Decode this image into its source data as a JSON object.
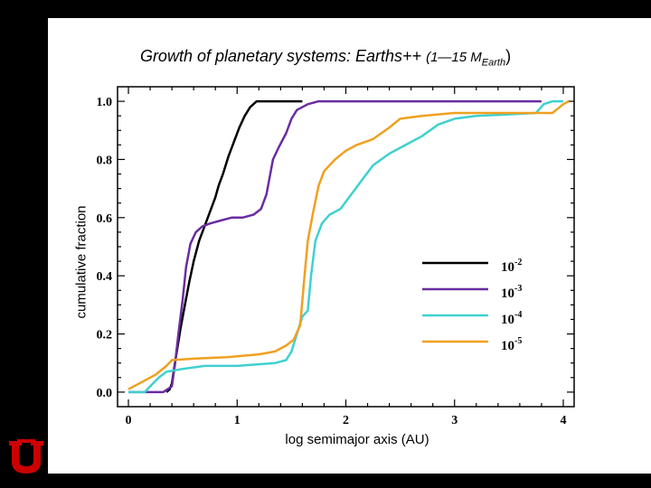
{
  "colors": {
    "background": "#000000",
    "slide": "#ffffff",
    "logo_red": "#cc0000"
  },
  "logo": {
    "icon": "university-u-logo"
  },
  "chart_data": {
    "type": "line",
    "title_main": "Growth of planetary systems:  Earths++ ",
    "title_range": "(1—15 M",
    "title_sub": "Earth",
    "title_close": ")",
    "xlabel": "log semimajor axis (AU)",
    "ylabel": "cumulative fraction",
    "xlim": [
      -0.1,
      4.1
    ],
    "ylim": [
      -0.05,
      1.05
    ],
    "xticks": [
      0,
      1,
      2,
      3,
      4
    ],
    "xtick_labels": [
      "0",
      "1",
      "2",
      "3",
      "4"
    ],
    "yticks": [
      0.0,
      0.2,
      0.4,
      0.6,
      0.8,
      1.0
    ],
    "ytick_labels": [
      "0.0",
      "0.2",
      "0.4",
      "0.6",
      "0.8",
      "1.0"
    ],
    "legend_position": "lower-right",
    "series": [
      {
        "name": "10-2",
        "base": "10",
        "exponent": "-2",
        "color": "#000000",
        "points": [
          [
            0.35,
            0.0
          ],
          [
            0.38,
            0.01
          ],
          [
            0.4,
            0.03
          ],
          [
            0.42,
            0.08
          ],
          [
            0.45,
            0.15
          ],
          [
            0.48,
            0.22
          ],
          [
            0.52,
            0.3
          ],
          [
            0.56,
            0.38
          ],
          [
            0.6,
            0.45
          ],
          [
            0.65,
            0.52
          ],
          [
            0.7,
            0.57
          ],
          [
            0.75,
            0.62
          ],
          [
            0.8,
            0.67
          ],
          [
            0.83,
            0.71
          ],
          [
            0.87,
            0.75
          ],
          [
            0.92,
            0.81
          ],
          [
            0.97,
            0.86
          ],
          [
            1.02,
            0.91
          ],
          [
            1.07,
            0.95
          ],
          [
            1.12,
            0.98
          ],
          [
            1.18,
            1.0
          ],
          [
            1.3,
            1.0
          ],
          [
            1.6,
            1.0
          ]
        ]
      },
      {
        "name": "10-3",
        "base": "10",
        "exponent": "-3",
        "color": "#6a2ca0",
        "points": [
          [
            0.0,
            0.0
          ],
          [
            0.32,
            0.0
          ],
          [
            0.4,
            0.02
          ],
          [
            0.43,
            0.1
          ],
          [
            0.46,
            0.2
          ],
          [
            0.5,
            0.32
          ],
          [
            0.53,
            0.43
          ],
          [
            0.57,
            0.51
          ],
          [
            0.62,
            0.55
          ],
          [
            0.68,
            0.57
          ],
          [
            0.75,
            0.58
          ],
          [
            0.85,
            0.59
          ],
          [
            0.95,
            0.6
          ],
          [
            1.05,
            0.6
          ],
          [
            1.15,
            0.61
          ],
          [
            1.22,
            0.63
          ],
          [
            1.27,
            0.68
          ],
          [
            1.3,
            0.74
          ],
          [
            1.33,
            0.8
          ],
          [
            1.38,
            0.84
          ],
          [
            1.45,
            0.89
          ],
          [
            1.5,
            0.94
          ],
          [
            1.55,
            0.97
          ],
          [
            1.65,
            0.99
          ],
          [
            1.75,
            1.0
          ],
          [
            2.0,
            1.0
          ],
          [
            3.5,
            1.0
          ],
          [
            3.8,
            1.0
          ]
        ]
      },
      {
        "name": "10-4",
        "base": "10",
        "exponent": "-4",
        "color": "#40d0d0",
        "points": [
          [
            0.0,
            0.0
          ],
          [
            0.15,
            0.0
          ],
          [
            0.2,
            0.02
          ],
          [
            0.28,
            0.05
          ],
          [
            0.35,
            0.07
          ],
          [
            0.5,
            0.08
          ],
          [
            0.7,
            0.09
          ],
          [
            1.0,
            0.09
          ],
          [
            1.35,
            0.1
          ],
          [
            1.45,
            0.11
          ],
          [
            1.5,
            0.14
          ],
          [
            1.55,
            0.2
          ],
          [
            1.6,
            0.26
          ],
          [
            1.65,
            0.28
          ],
          [
            1.68,
            0.4
          ],
          [
            1.72,
            0.52
          ],
          [
            1.78,
            0.58
          ],
          [
            1.85,
            0.61
          ],
          [
            1.95,
            0.63
          ],
          [
            2.05,
            0.68
          ],
          [
            2.15,
            0.73
          ],
          [
            2.25,
            0.78
          ],
          [
            2.4,
            0.82
          ],
          [
            2.55,
            0.85
          ],
          [
            2.7,
            0.88
          ],
          [
            2.85,
            0.92
          ],
          [
            3.0,
            0.94
          ],
          [
            3.2,
            0.95
          ],
          [
            3.5,
            0.955
          ],
          [
            3.75,
            0.96
          ],
          [
            3.82,
            0.99
          ],
          [
            3.9,
            1.0
          ],
          [
            4.0,
            1.0
          ]
        ]
      },
      {
        "name": "10-5",
        "base": "10",
        "exponent": "-5",
        "color": "#f0a020",
        "points": [
          [
            0.0,
            0.01
          ],
          [
            0.1,
            0.03
          ],
          [
            0.25,
            0.06
          ],
          [
            0.35,
            0.09
          ],
          [
            0.4,
            0.11
          ],
          [
            0.6,
            0.115
          ],
          [
            0.9,
            0.12
          ],
          [
            1.2,
            0.13
          ],
          [
            1.35,
            0.14
          ],
          [
            1.45,
            0.16
          ],
          [
            1.52,
            0.18
          ],
          [
            1.58,
            0.23
          ],
          [
            1.62,
            0.4
          ],
          [
            1.65,
            0.52
          ],
          [
            1.7,
            0.62
          ],
          [
            1.75,
            0.71
          ],
          [
            1.8,
            0.76
          ],
          [
            1.9,
            0.8
          ],
          [
            2.0,
            0.83
          ],
          [
            2.1,
            0.85
          ],
          [
            2.25,
            0.87
          ],
          [
            2.4,
            0.91
          ],
          [
            2.5,
            0.94
          ],
          [
            2.7,
            0.95
          ],
          [
            3.0,
            0.96
          ],
          [
            3.5,
            0.96
          ],
          [
            3.9,
            0.96
          ],
          [
            4.0,
            0.99
          ],
          [
            4.05,
            1.0
          ]
        ]
      }
    ]
  }
}
